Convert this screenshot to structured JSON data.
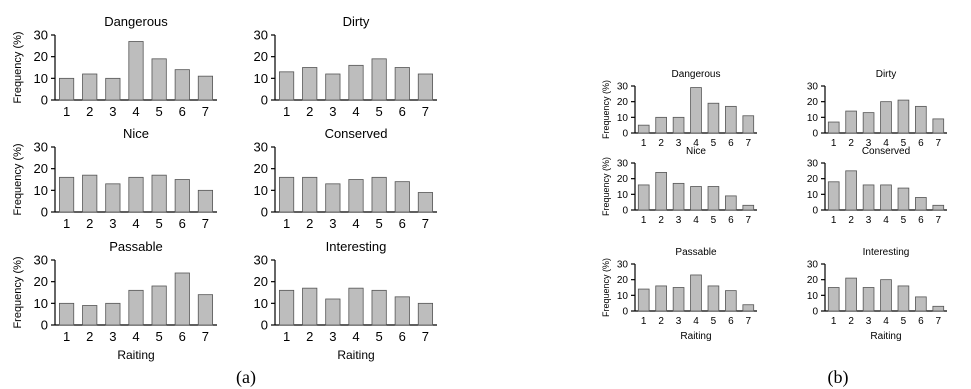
{
  "colors": {
    "bar_fill": "#bdbdbd",
    "bar_edge": "#555555",
    "axis": "#000000"
  },
  "panels": [
    {
      "caption": "(a)"
    },
    {
      "caption": "(b)"
    }
  ],
  "chart_data": [
    {
      "type": "bar",
      "panel": "(a)",
      "title": "Dangerous",
      "xlabel": "",
      "ylabel": "Frequency (%)",
      "categories": [
        "1",
        "2",
        "3",
        "4",
        "5",
        "6",
        "7"
      ],
      "values": [
        10,
        12,
        10,
        27,
        19,
        14,
        11
      ],
      "ylim": [
        0,
        30
      ],
      "yticks": [
        "0",
        "10",
        "20",
        "30"
      ]
    },
    {
      "type": "bar",
      "panel": "(a)",
      "title": "Dirty",
      "xlabel": "",
      "ylabel": "",
      "categories": [
        "1",
        "2",
        "3",
        "4",
        "5",
        "6",
        "7"
      ],
      "values": [
        13,
        15,
        12,
        16,
        19,
        15,
        12
      ],
      "ylim": [
        0,
        30
      ],
      "yticks": [
        "0",
        "10",
        "20",
        "30"
      ]
    },
    {
      "type": "bar",
      "panel": "(a)",
      "title": "Nice",
      "xlabel": "",
      "ylabel": "Frequency (%)",
      "categories": [
        "1",
        "2",
        "3",
        "4",
        "5",
        "6",
        "7"
      ],
      "values": [
        16,
        17,
        13,
        16,
        17,
        15,
        10
      ],
      "ylim": [
        0,
        30
      ],
      "yticks": [
        "0",
        "10",
        "20",
        "30"
      ]
    },
    {
      "type": "bar",
      "panel": "(a)",
      "title": "Conserved",
      "xlabel": "",
      "ylabel": "",
      "categories": [
        "1",
        "2",
        "3",
        "4",
        "5",
        "6",
        "7"
      ],
      "values": [
        16,
        16,
        13,
        15,
        16,
        14,
        9
      ],
      "ylim": [
        0,
        30
      ],
      "yticks": [
        "0",
        "10",
        "20",
        "30"
      ]
    },
    {
      "type": "bar",
      "panel": "(a)",
      "title": "Passable",
      "xlabel": "Raiting",
      "ylabel": "Frequency (%)",
      "categories": [
        "1",
        "2",
        "3",
        "4",
        "5",
        "6",
        "7"
      ],
      "values": [
        10,
        9,
        10,
        16,
        18,
        24,
        14
      ],
      "ylim": [
        0,
        30
      ],
      "yticks": [
        "0",
        "10",
        "20",
        "30"
      ]
    },
    {
      "type": "bar",
      "panel": "(a)",
      "title": "Interesting",
      "xlabel": "Raiting",
      "ylabel": "",
      "categories": [
        "1",
        "2",
        "3",
        "4",
        "5",
        "6",
        "7"
      ],
      "values": [
        16,
        17,
        12,
        17,
        16,
        13,
        10
      ],
      "ylim": [
        0,
        30
      ],
      "yticks": [
        "0",
        "10",
        "20",
        "30"
      ]
    },
    {
      "type": "bar",
      "panel": "(b)",
      "title": "Dangerous",
      "xlabel": "",
      "ylabel": "Frequency (%)",
      "categories": [
        "1",
        "2",
        "3",
        "4",
        "5",
        "6",
        "7"
      ],
      "values": [
        5,
        10,
        10,
        29,
        19,
        17,
        11
      ],
      "ylim": [
        0,
        30
      ],
      "yticks": [
        "0",
        "10",
        "20",
        "30"
      ]
    },
    {
      "type": "bar",
      "panel": "(b)",
      "title": "Dirty",
      "xlabel": "",
      "ylabel": "",
      "categories": [
        "1",
        "2",
        "3",
        "4",
        "5",
        "6",
        "7"
      ],
      "values": [
        7,
        14,
        13,
        20,
        21,
        17,
        9
      ],
      "ylim": [
        0,
        30
      ],
      "yticks": [
        "0",
        "10",
        "20",
        "30"
      ]
    },
    {
      "type": "bar",
      "panel": "(b)",
      "title": "Nice",
      "xlabel": "",
      "ylabel": "Frequency (%)",
      "categories": [
        "1",
        "2",
        "3",
        "4",
        "5",
        "6",
        "7"
      ],
      "values": [
        16,
        24,
        17,
        15,
        15,
        9,
        3
      ],
      "ylim": [
        0,
        30
      ],
      "yticks": [
        "0",
        "10",
        "20",
        "30"
      ]
    },
    {
      "type": "bar",
      "panel": "(b)",
      "title": "Conserved",
      "xlabel": "",
      "ylabel": "",
      "categories": [
        "1",
        "2",
        "3",
        "4",
        "5",
        "6",
        "7"
      ],
      "values": [
        18,
        25,
        16,
        16,
        14,
        8,
        3
      ],
      "ylim": [
        0,
        30
      ],
      "yticks": [
        "0",
        "10",
        "20",
        "30"
      ]
    },
    {
      "type": "bar",
      "panel": "(b)",
      "title": "Passable",
      "xlabel": "Raiting",
      "ylabel": "Frequency (%)",
      "categories": [
        "1",
        "2",
        "3",
        "4",
        "5",
        "6",
        "7"
      ],
      "values": [
        14,
        16,
        15,
        23,
        16,
        13,
        4
      ],
      "ylim": [
        0,
        30
      ],
      "yticks": [
        "0",
        "10",
        "20",
        "30"
      ]
    },
    {
      "type": "bar",
      "panel": "(b)",
      "title": "Interesting",
      "xlabel": "Raiting",
      "ylabel": "",
      "categories": [
        "1",
        "2",
        "3",
        "4",
        "5",
        "6",
        "7"
      ],
      "values": [
        15,
        21,
        15,
        20,
        16,
        9,
        3
      ],
      "ylim": [
        0,
        30
      ],
      "yticks": [
        "0",
        "10",
        "20",
        "30"
      ]
    }
  ]
}
